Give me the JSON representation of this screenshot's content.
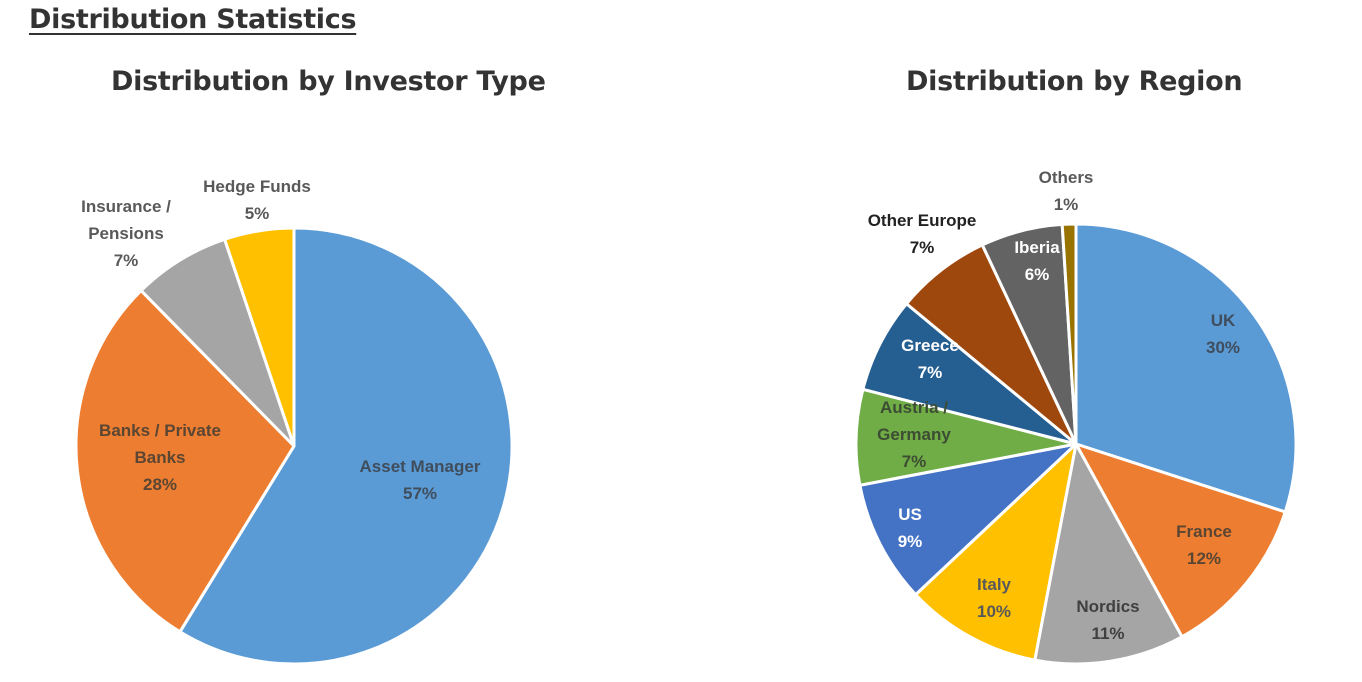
{
  "page": {
    "section_title": "Distribution Statistics"
  },
  "chart_data": [
    {
      "type": "pie",
      "title": "Distribution by Investor Type",
      "slices": [
        {
          "label": [
            "Asset Manager"
          ],
          "value": 57,
          "value_label": "57%",
          "color": "#5B9BD5",
          "text_color": "#3f4d5c"
        },
        {
          "label": [
            "Banks / Private",
            "Banks"
          ],
          "value": 28,
          "value_label": "28%",
          "color": "#ED7D31",
          "text_color": "#5a4632"
        },
        {
          "label": [
            "Insurance /",
            "Pensions"
          ],
          "value": 7,
          "value_label": "7%",
          "color": "#A5A5A5",
          "text_color": "#595959"
        },
        {
          "label": [
            "Hedge Funds"
          ],
          "value": 5,
          "value_label": "5%",
          "color": "#FFC000",
          "text_color": "#595959"
        }
      ]
    },
    {
      "type": "pie",
      "title": "Distribution by Region",
      "slices": [
        {
          "label": [
            "UK"
          ],
          "value": 30,
          "value_label": "30%",
          "color": "#5B9BD5",
          "text_color": "#3f4d5c"
        },
        {
          "label": [
            "France"
          ],
          "value": 12,
          "value_label": "12%",
          "color": "#ED7D31",
          "text_color": "#5a4632"
        },
        {
          "label": [
            "Nordics"
          ],
          "value": 11,
          "value_label": "11%",
          "color": "#A5A5A5",
          "text_color": "#404040"
        },
        {
          "label": [
            "Italy"
          ],
          "value": 10,
          "value_label": "10%",
          "color": "#FFC000",
          "text_color": "#595959"
        },
        {
          "label": [
            "US"
          ],
          "value": 9,
          "value_label": "9%",
          "color": "#4472C4",
          "text_color": "#ffffff"
        },
        {
          "label": [
            "Austria /",
            "Germany"
          ],
          "value": 7,
          "value_label": "7%",
          "color": "#70AD47",
          "text_color": "#3d4d33"
        },
        {
          "label": [
            "Greece"
          ],
          "value": 7,
          "value_label": "7%",
          "color": "#255E91",
          "text_color": "#ffffff"
        },
        {
          "label": [
            "Other Europe"
          ],
          "value": 7,
          "value_label": "7%",
          "color": "#9E480E",
          "text_color": "#222222"
        },
        {
          "label": [
            "Iberia"
          ],
          "value": 6,
          "value_label": "6%",
          "color": "#636363",
          "text_color": "#ffffff"
        },
        {
          "label": [
            "Others"
          ],
          "value": 1,
          "value_label": "1%",
          "color": "#997300",
          "text_color": "#595959"
        }
      ]
    }
  ]
}
